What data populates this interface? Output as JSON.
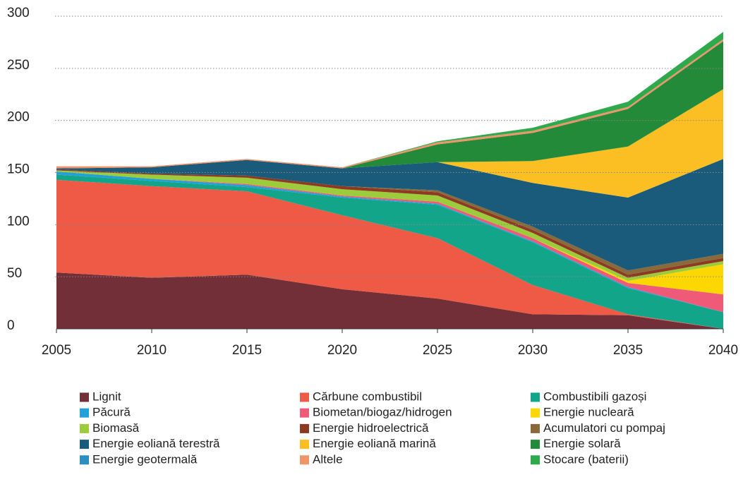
{
  "chart_data": {
    "type": "stacked_area",
    "x": [
      2005,
      2010,
      2015,
      2020,
      2025,
      2030,
      2035,
      2040
    ],
    "xlim": [
      2005,
      2040
    ],
    "xticks": [
      2005,
      2010,
      2015,
      2020,
      2025,
      2030,
      2035,
      2040
    ],
    "ylim": [
      0,
      300
    ],
    "yticks": [
      0,
      50,
      100,
      150,
      200,
      250,
      300
    ],
    "grid": true,
    "legend": "bottom",
    "series": [
      {
        "name": "Lignit",
        "color": "#722f37",
        "values": [
          54,
          49,
          52,
          38,
          29,
          14,
          13,
          0
        ]
      },
      {
        "name": "Cărbune combustibil",
        "color": "#ee5a45",
        "values": [
          89,
          88,
          80,
          71,
          58,
          28,
          1,
          0
        ]
      },
      {
        "name": "Combustibili gazoși",
        "color": "#12a58a",
        "values": [
          5,
          5,
          4,
          17,
          32,
          41,
          25,
          16
        ]
      },
      {
        "name": "Păcură",
        "color": "#22a0d8",
        "values": [
          3,
          2,
          2,
          1,
          1,
          1,
          1,
          0
        ]
      },
      {
        "name": "Biometan/biogaz/hidrogen",
        "color": "#ee5a78",
        "values": [
          0,
          0,
          1,
          1,
          2,
          3,
          4,
          17
        ]
      },
      {
        "name": "Energie nucleară",
        "color": "#fcd700",
        "values": [
          0,
          0,
          0,
          0,
          0,
          0,
          2,
          29
        ]
      },
      {
        "name": "Biomasă",
        "color": "#9ccc3b",
        "values": [
          1,
          4,
          6,
          6,
          6,
          5,
          3,
          3
        ]
      },
      {
        "name": "Energie hidroelectrică",
        "color": "#8c3a22",
        "values": [
          1,
          1,
          2,
          3,
          3,
          3,
          3,
          3
        ]
      },
      {
        "name": "Acumulatori cu pompaj",
        "color": "#8a6a3a",
        "values": [
          0,
          0,
          0,
          0,
          2,
          3,
          4,
          4
        ]
      },
      {
        "name": "Energie eoliană terestră",
        "color": "#1a5a7a",
        "values": [
          1,
          6,
          15,
          17,
          27,
          42,
          70,
          91
        ]
      },
      {
        "name": "Energie eoliană marină",
        "color": "#fbbf24",
        "values": [
          0,
          0,
          0,
          0,
          0,
          21,
          49,
          67
        ]
      },
      {
        "name": "Energie solară",
        "color": "#238a3a",
        "values": [
          0,
          0,
          0,
          0,
          17,
          27,
          36,
          46
        ]
      },
      {
        "name": "Energie geotermală",
        "color": "#2a8fc0",
        "values": [
          0,
          0,
          0,
          0,
          0,
          0,
          0,
          0
        ]
      },
      {
        "name": "Altele",
        "color": "#f0956a",
        "values": [
          2,
          1,
          1,
          1,
          2,
          2,
          2,
          2
        ]
      },
      {
        "name": "Stocare (baterii)",
        "color": "#2eaa4c",
        "values": [
          0,
          0,
          0,
          0,
          1,
          3,
          5,
          7
        ]
      }
    ]
  }
}
